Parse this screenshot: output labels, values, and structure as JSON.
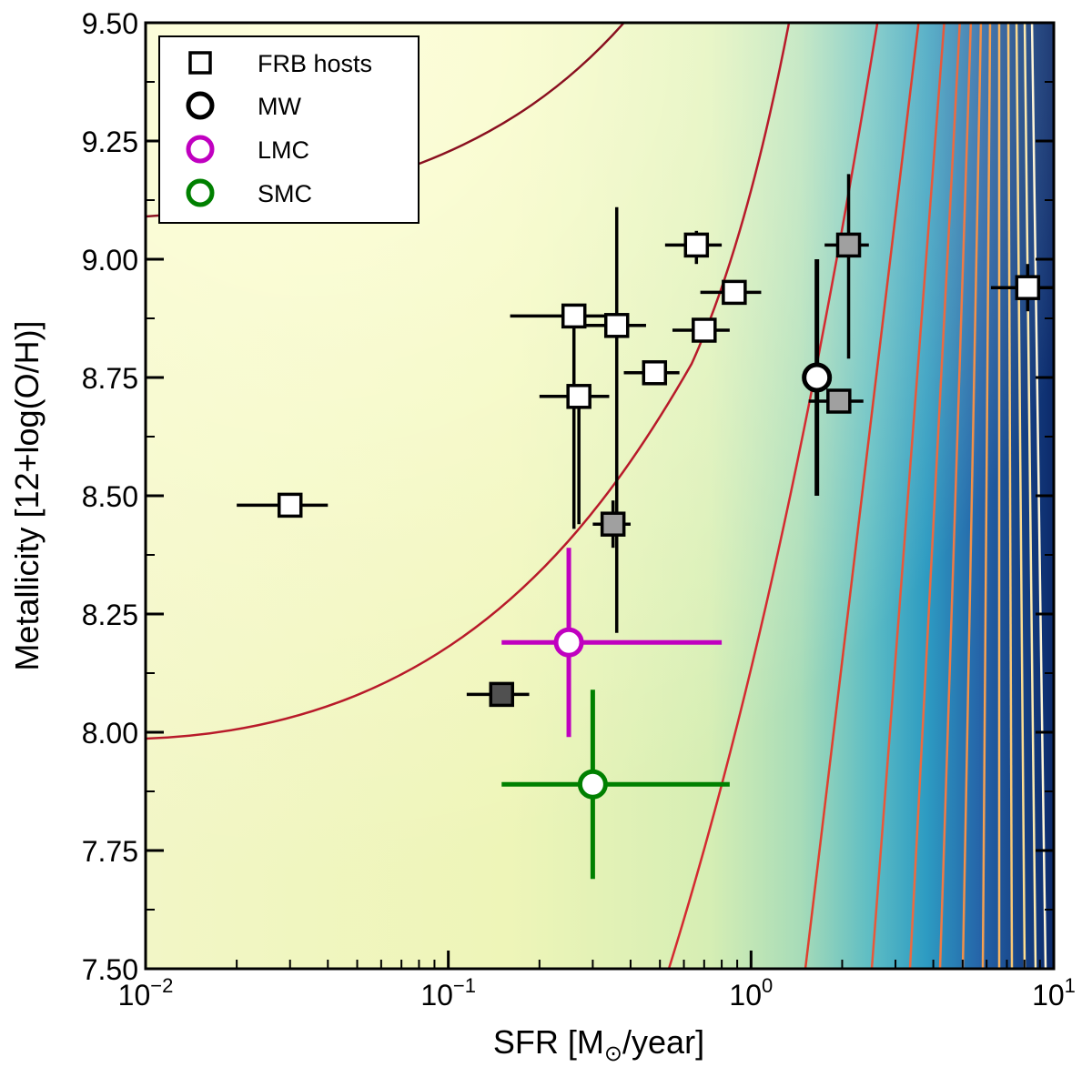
{
  "chart_data": {
    "type": "scatter",
    "title": "",
    "xlabel_main": "SFR [M",
    "xlabel_sub": "⊙",
    "xlabel_tail": "/year]",
    "ylabel": "Metallicity [12+log(O/H)]",
    "x_scale": "log",
    "xlim": [
      0.01,
      10
    ],
    "ylim": [
      7.5,
      9.5
    ],
    "x_ticks": [
      {
        "value": 0.01,
        "base": "10",
        "exp": "−2"
      },
      {
        "value": 0.1,
        "base": "10",
        "exp": "−1"
      },
      {
        "value": 1,
        "base": "10",
        "exp": "0"
      },
      {
        "value": 10,
        "base": "10",
        "exp": "1"
      }
    ],
    "y_ticks": [
      "7.50",
      "7.75",
      "8.00",
      "8.25",
      "8.50",
      "8.75",
      "9.00",
      "9.25",
      "9.50"
    ],
    "legend_position": "top-left",
    "legend": [
      {
        "label": "FRB hosts",
        "marker": "square",
        "color": "#000000"
      },
      {
        "label": "MW",
        "marker": "circle",
        "color": "#000000"
      },
      {
        "label": "LMC",
        "marker": "circle",
        "color": "#c000c0"
      },
      {
        "label": "SMC",
        "marker": "circle",
        "color": "#008000"
      }
    ],
    "background": "filled contour map increasing with SFR (pale yellow to dark blue), with contour lines",
    "series": [
      {
        "name": "FRB hosts",
        "marker": "square",
        "points": [
          {
            "x": 0.03,
            "y": 8.48,
            "xerr": [
              0.01,
              0.01
            ],
            "yerr": null,
            "fill": "#ffffff"
          },
          {
            "x": 0.15,
            "y": 8.08,
            "xerr": [
              0.035,
              0.035
            ],
            "yerr": null,
            "fill": "#505050"
          },
          {
            "x": 0.26,
            "y": 8.88,
            "xerr": [
              0.1,
              0.1
            ],
            "yerr": [
              0.45,
              0.0
            ],
            "fill": "#ffffff"
          },
          {
            "x": 0.27,
            "y": 8.71,
            "xerr": [
              0.07,
              0.07
            ],
            "yerr": [
              0.27,
              0.0
            ],
            "fill": "#ffffff"
          },
          {
            "x": 0.36,
            "y": 8.86,
            "xerr": [
              0.09,
              0.09
            ],
            "yerr": [
              0.65,
              0.25
            ],
            "fill": "#ffffff"
          },
          {
            "x": 0.35,
            "y": 8.44,
            "xerr": [
              0.05,
              0.05
            ],
            "yerr": [
              0.05,
              0.05
            ],
            "fill": "#a0a0a0"
          },
          {
            "x": 0.48,
            "y": 8.76,
            "xerr": [
              0.1,
              0.1
            ],
            "yerr": null,
            "fill": "#ffffff"
          },
          {
            "x": 0.66,
            "y": 9.03,
            "xerr": [
              0.14,
              0.14
            ],
            "yerr": [
              0.04,
              0.03
            ],
            "fill": "#ffffff"
          },
          {
            "x": 0.7,
            "y": 8.85,
            "xerr": [
              0.15,
              0.15
            ],
            "yerr": null,
            "fill": "#ffffff"
          },
          {
            "x": 0.88,
            "y": 8.93,
            "xerr": [
              0.2,
              0.2
            ],
            "yerr": null,
            "fill": "#ffffff"
          },
          {
            "x": 1.95,
            "y": 8.7,
            "xerr": [
              0.4,
              0.4
            ],
            "yerr": null,
            "fill": "#a0a0a0"
          },
          {
            "x": 2.1,
            "y": 9.03,
            "xerr": [
              0.35,
              0.35
            ],
            "yerr": [
              0.24,
              0.15
            ],
            "fill": "#a0a0a0"
          },
          {
            "x": 8.2,
            "y": 8.94,
            "xerr": [
              2.0,
              2.0
            ],
            "yerr": [
              0.05,
              0.05
            ],
            "fill": "#ffffff"
          }
        ]
      },
      {
        "name": "MW",
        "marker": "circle",
        "color": "#000000",
        "points": [
          {
            "x": 1.65,
            "y": 8.75,
            "xerr": [
              0.15,
              0.15
            ],
            "yerr": [
              0.25,
              0.25
            ]
          }
        ]
      },
      {
        "name": "LMC",
        "marker": "circle",
        "color": "#c000c0",
        "points": [
          {
            "x": 0.25,
            "y": 8.19,
            "xerr": [
              0.1,
              0.55
            ],
            "yerr": [
              0.2,
              0.2
            ]
          }
        ]
      },
      {
        "name": "SMC",
        "marker": "circle",
        "color": "#008000",
        "points": [
          {
            "x": 0.3,
            "y": 7.89,
            "xerr": [
              0.15,
              0.55
            ],
            "yerr": [
              0.2,
              0.2
            ]
          }
        ]
      }
    ]
  }
}
